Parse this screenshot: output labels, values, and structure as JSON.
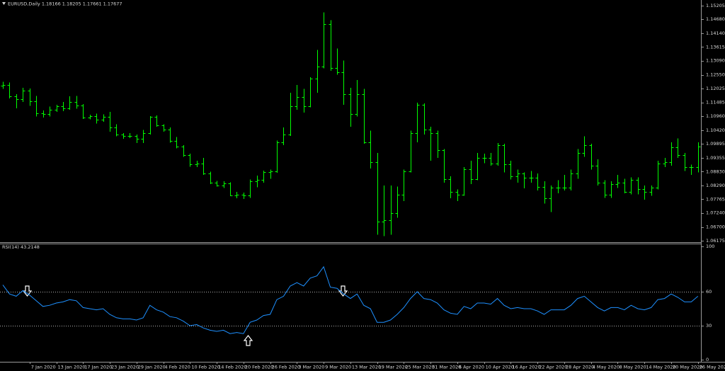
{
  "chart_data": [
    {
      "type": "ohlc",
      "title": "EURUSD,Daily 1.18166 1.18205 1.17661 1.17677",
      "color": "#00ff00",
      "categories": [
        null,
        null,
        null,
        null,
        "7 Jan 2020",
        null,
        null,
        null,
        "13 Jan 2020",
        null,
        null,
        null,
        "17 Jan 2020",
        null,
        null,
        null,
        "23 Jan 2020",
        null,
        null,
        null,
        "29 Jan 2020",
        null,
        null,
        null,
        "4 Feb 2020",
        null,
        null,
        null,
        "10 Feb 2020",
        null,
        null,
        null,
        "14 Feb 2020",
        null,
        null,
        null,
        "20 Feb 2020",
        null,
        null,
        null,
        "26 Feb 2020",
        null,
        null,
        null,
        "3 Mar 2020",
        null,
        null,
        null,
        "9 Mar 2020",
        null,
        null,
        null,
        "13 Mar 2020",
        null,
        null,
        null,
        "19 Mar 2020",
        null,
        null,
        null,
        "25 Mar 2020",
        null,
        null,
        null,
        "31 Mar 2020",
        null,
        null,
        null,
        "6 Apr 2020",
        null,
        null,
        null,
        "10 Apr 2020",
        null,
        null,
        null,
        "16 Apr 2020",
        null,
        null,
        null,
        "22 Apr 2020",
        null,
        null,
        null,
        "28 Apr 2020",
        null,
        null,
        null,
        "4 May 2020",
        null,
        null,
        null,
        "8 May 2020",
        null,
        null,
        null,
        "14 May 2020",
        null,
        null,
        null,
        "20 May 2020",
        null,
        null,
        null,
        "26 May 2020"
      ],
      "open": [
        1.1213,
        1.1215,
        1.1172,
        1.116,
        1.1195,
        1.1152,
        1.1107,
        1.1105,
        1.112,
        1.1134,
        1.1127,
        1.115,
        1.1137,
        1.109,
        1.1095,
        1.1082,
        1.1092,
        1.1053,
        1.1025,
        1.102,
        1.102,
        1.101,
        1.103,
        1.1093,
        1.106,
        1.1044,
        1.1,
        1.098,
        1.0945,
        1.091,
        1.0915,
        1.0875,
        1.084,
        1.083,
        1.0837,
        1.079,
        1.0794,
        1.079,
        1.0845,
        1.0852,
        1.088,
        1.0883,
        1.0995,
        1.1025,
        1.1135,
        1.117,
        1.1135,
        1.124,
        1.1285,
        1.145,
        1.128,
        1.1265,
        1.118,
        1.1105,
        1.118,
        1.0995,
        1.092,
        1.069,
        1.0695,
        1.0722,
        1.0795,
        1.0885,
        1.103,
        1.114,
        1.1045,
        1.103,
        1.0965,
        1.0855,
        1.0805,
        1.0795,
        1.0892,
        1.0855,
        1.0935,
        1.0935,
        1.0915,
        1.0985,
        1.091,
        1.0865,
        1.0875,
        1.086,
        1.086,
        1.0825,
        1.078,
        1.082,
        1.0822,
        1.0822,
        1.0875,
        1.0955,
        1.0985,
        1.0905,
        1.084,
        1.0795,
        1.0835,
        1.084,
        1.0805,
        1.085,
        1.0815,
        1.0805,
        1.082,
        1.0915,
        1.092,
        1.0977,
        1.0945,
        1.09,
        1.09
      ],
      "high": [
        1.1228,
        1.1225,
        1.118,
        1.1205,
        1.1202,
        1.1173,
        1.1118,
        1.1133,
        1.114,
        1.115,
        1.1172,
        1.1173,
        1.1142,
        1.1101,
        1.1106,
        1.1103,
        1.1112,
        1.1064,
        1.1031,
        1.1031,
        1.1025,
        1.1043,
        1.1096,
        1.1099,
        1.1065,
        1.1052,
        1.1015,
        1.0985,
        1.0952,
        1.0925,
        1.0935,
        1.0882,
        1.0847,
        1.0845,
        1.0842,
        1.0805,
        1.0802,
        1.0852,
        1.0868,
        1.0887,
        1.089,
        1.1002,
        1.1053,
        1.1185,
        1.1215,
        1.12,
        1.1245,
        1.135,
        1.1495,
        1.1465,
        1.1355,
        1.131,
        1.1205,
        1.1235,
        1.12,
        1.104,
        1.0955,
        1.083,
        1.083,
        1.0825,
        1.089,
        1.104,
        1.1148,
        1.1145,
        1.1055,
        1.104,
        1.097,
        1.0865,
        1.0815,
        1.09,
        1.0925,
        1.0955,
        1.0952,
        1.0955,
        1.0992,
        1.099,
        1.0925,
        1.089,
        1.088,
        1.0885,
        1.0875,
        1.0845,
        1.083,
        1.085,
        1.087,
        1.089,
        1.097,
        1.1018,
        1.099,
        1.093,
        1.085,
        1.0845,
        1.087,
        1.0855,
        1.086,
        1.086,
        1.083,
        1.083,
        1.0925,
        1.0935,
        1.0995,
        1.101,
        1.0955,
        1.091,
        1.0995
      ],
      "low": [
        1.12,
        1.1164,
        1.1126,
        1.115,
        1.1135,
        1.1094,
        1.1091,
        1.1094,
        1.1112,
        1.1115,
        1.112,
        1.1125,
        1.1085,
        1.1083,
        1.1068,
        1.1074,
        1.1036,
        1.1019,
        1.1009,
        1.1012,
        1.0992,
        1.0992,
        1.1025,
        1.1055,
        1.1036,
        1.0994,
        1.0972,
        1.094,
        1.0902,
        1.09,
        1.087,
        1.0835,
        1.0825,
        1.082,
        1.0788,
        1.078,
        1.0778,
        1.0782,
        1.0823,
        1.084,
        1.0855,
        1.0878,
        1.0985,
        1.102,
        1.112,
        1.111,
        1.113,
        1.1185,
        1.128,
        1.127,
        1.1255,
        1.114,
        1.1055,
        1.1095,
        1.099,
        1.0895,
        1.064,
        1.0635,
        1.064,
        1.0705,
        1.077,
        1.088,
        1.0995,
        1.1025,
        1.0925,
        1.0935,
        1.084,
        1.078,
        1.077,
        1.079,
        1.0835,
        1.085,
        1.0915,
        1.0905,
        1.0905,
        1.088,
        1.0852,
        1.084,
        1.0818,
        1.084,
        1.081,
        1.076,
        1.0727,
        1.08,
        1.081,
        1.081,
        1.0855,
        1.094,
        1.089,
        1.083,
        1.0782,
        1.0782,
        1.082,
        1.08,
        1.0795,
        1.0795,
        1.0775,
        1.079,
        1.0815,
        1.09,
        1.0905,
        1.0935,
        1.0885,
        1.087,
        1.088
      ],
      "close": [
        1.1215,
        1.1172,
        1.116,
        1.1195,
        1.1152,
        1.1107,
        1.1105,
        1.112,
        1.1134,
        1.1127,
        1.115,
        1.1137,
        1.109,
        1.1095,
        1.1082,
        1.1092,
        1.1053,
        1.1025,
        1.102,
        1.102,
        1.101,
        1.103,
        1.1093,
        1.106,
        1.1044,
        1.1,
        1.098,
        1.0945,
        1.091,
        1.0915,
        1.0875,
        1.084,
        1.083,
        1.0837,
        1.079,
        1.0794,
        1.079,
        1.0845,
        1.0852,
        1.088,
        1.0883,
        1.0995,
        1.1025,
        1.1135,
        1.117,
        1.1135,
        1.124,
        1.1285,
        1.145,
        1.128,
        1.1265,
        1.118,
        1.1105,
        1.118,
        1.0995,
        1.092,
        1.069,
        1.0695,
        1.0722,
        1.0795,
        1.0885,
        1.103,
        1.114,
        1.1045,
        1.103,
        1.0965,
        1.0855,
        1.0805,
        1.0795,
        1.0892,
        1.0855,
        1.0935,
        1.0935,
        1.0915,
        1.0985,
        1.091,
        1.0865,
        1.0875,
        1.086,
        1.086,
        1.0825,
        1.078,
        1.082,
        1.0822,
        1.0822,
        1.0875,
        1.0955,
        1.0985,
        1.0905,
        1.084,
        1.0795,
        1.0835,
        1.084,
        1.0805,
        1.085,
        1.0815,
        1.0805,
        1.082,
        1.0915,
        1.092,
        1.0977,
        1.0945,
        1.09,
        1.09,
        1.098
      ],
      "ylim": [
        1.0609,
        1.1542
      ],
      "yticks": [
        1.15205,
        {
          "value": 1.1468,
          "label": "1.14680"
        },
        {
          "value": 1.1414,
          "label": "1.14140"
        },
        1.13615,
        {
          "value": 1.1309,
          "label": "1.13090"
        },
        {
          "value": 1.1255,
          "label": "1.12550"
        },
        1.12025,
        1.11485,
        {
          "value": 1.1096,
          "label": "1.10960"
        },
        {
          "value": 1.1042,
          "label": "1.10420"
        },
        1.09895,
        1.09355,
        {
          "value": 1.0883,
          "label": "1.08830"
        },
        {
          "value": 1.0829,
          "label": "1.08290"
        },
        1.07765,
        {
          "value": 1.0724,
          "label": "1.07240"
        },
        {
          "value": 1.067,
          "label": "1.06700"
        },
        1.06175
      ]
    },
    {
      "type": "line",
      "title": "RSI(14) 43.2148",
      "color": "#1e90ff",
      "values": [
        66,
        58,
        56,
        61,
        57,
        52,
        47,
        48,
        50,
        51,
        53,
        52,
        46,
        45,
        44,
        45,
        40,
        37,
        36,
        36,
        35,
        37,
        48,
        44,
        42,
        38,
        37,
        34,
        30,
        31,
        28,
        26,
        25,
        26,
        23,
        24,
        23,
        33,
        35,
        39,
        40,
        53,
        56,
        65,
        68,
        65,
        72,
        74,
        82,
        64,
        63,
        58,
        54,
        58,
        48,
        45,
        33,
        33,
        35,
        40,
        46,
        54,
        60,
        54,
        53,
        50,
        44,
        41,
        40,
        47,
        45,
        50,
        50,
        49,
        54,
        48,
        45,
        46,
        45,
        45,
        43,
        40,
        44,
        44,
        44,
        48,
        54,
        56,
        51,
        46,
        43,
        46,
        46,
        44,
        48,
        45,
        44,
        46,
        53,
        54,
        58,
        55,
        51,
        51,
        56
      ],
      "ylim": [
        0,
        100
      ],
      "yticks": [
        0,
        30,
        60,
        100
      ],
      "levels": [
        30,
        60
      ]
    }
  ]
}
